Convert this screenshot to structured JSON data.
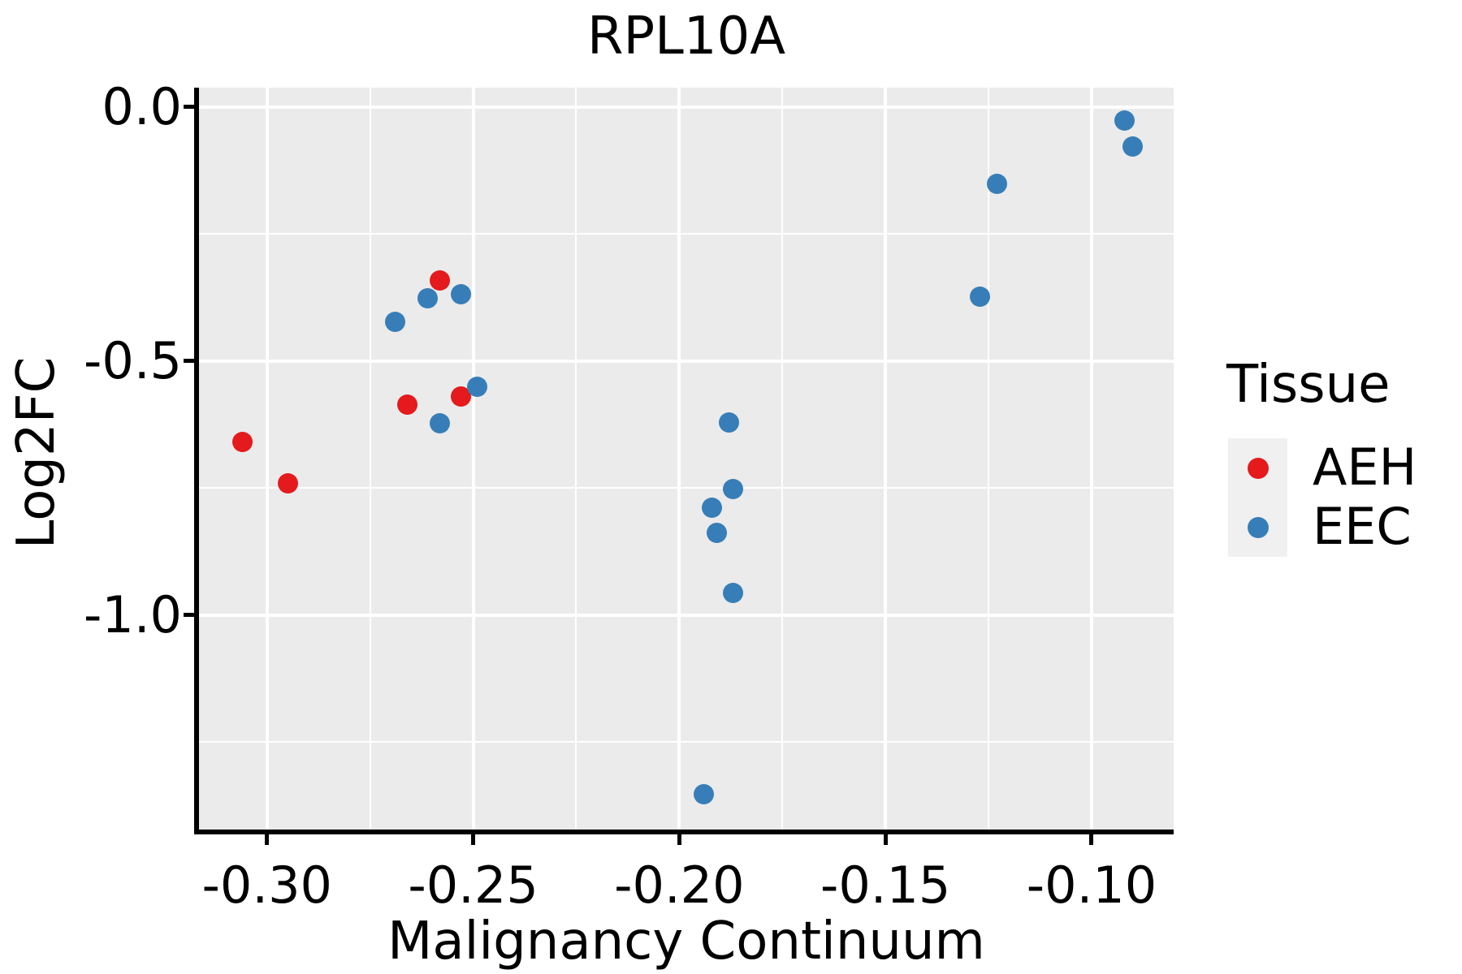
{
  "chart_data": {
    "type": "scatter",
    "title": "RPL10A",
    "xlabel": "Malignancy Continuum",
    "ylabel": "Log2FC",
    "xlim": [
      -0.3165,
      -0.0801
    ],
    "ylim": [
      -1.422,
      0.0382
    ],
    "grid": true,
    "legend_position": "right",
    "legend_title": "Tissue",
    "x_ticks": [
      {
        "value": -0.3,
        "label": "-0.30"
      },
      {
        "value": -0.25,
        "label": "-0.25"
      },
      {
        "value": -0.2,
        "label": "-0.20"
      },
      {
        "value": -0.15,
        "label": "-0.15"
      },
      {
        "value": -0.1,
        "label": "-0.10"
      }
    ],
    "x_minor_ticks": [
      -0.275,
      -0.225,
      -0.175,
      -0.125
    ],
    "y_ticks": [
      {
        "value": 0.0,
        "label": "0.0"
      },
      {
        "value": -0.5,
        "label": "-0.5"
      },
      {
        "value": -1.0,
        "label": "-1.0"
      }
    ],
    "y_minor_ticks": [
      -0.25,
      -0.75,
      -1.25
    ],
    "series": [
      {
        "name": "AEH",
        "color": "#E41A1C",
        "points": [
          [
            -0.306,
            -0.659
          ],
          [
            -0.295,
            -0.74
          ],
          [
            -0.266,
            -0.586
          ],
          [
            -0.258,
            -0.341
          ],
          [
            -0.253,
            -0.57
          ]
        ]
      },
      {
        "name": "EEC",
        "color": "#377EB8",
        "points": [
          [
            -0.269,
            -0.422
          ],
          [
            -0.261,
            -0.377
          ],
          [
            -0.253,
            -0.368
          ],
          [
            -0.258,
            -0.623
          ],
          [
            -0.249,
            -0.551
          ],
          [
            -0.194,
            -1.353
          ],
          [
            -0.192,
            -0.788
          ],
          [
            -0.191,
            -0.838
          ],
          [
            -0.188,
            -0.621
          ],
          [
            -0.187,
            -0.752
          ],
          [
            -0.187,
            -0.957
          ],
          [
            -0.127,
            -0.373
          ],
          [
            -0.123,
            -0.151
          ],
          [
            -0.092,
            -0.026
          ],
          [
            -0.09,
            -0.078
          ]
        ]
      }
    ]
  },
  "colors": {
    "panel_background": "#EBEBEB",
    "gridline": "#FFFFFF",
    "axis_line": "#000000",
    "text": "#000000",
    "legend_key_background": "#F0F0F0",
    "aeh": "#E41A1C",
    "eec": "#377EB8"
  }
}
